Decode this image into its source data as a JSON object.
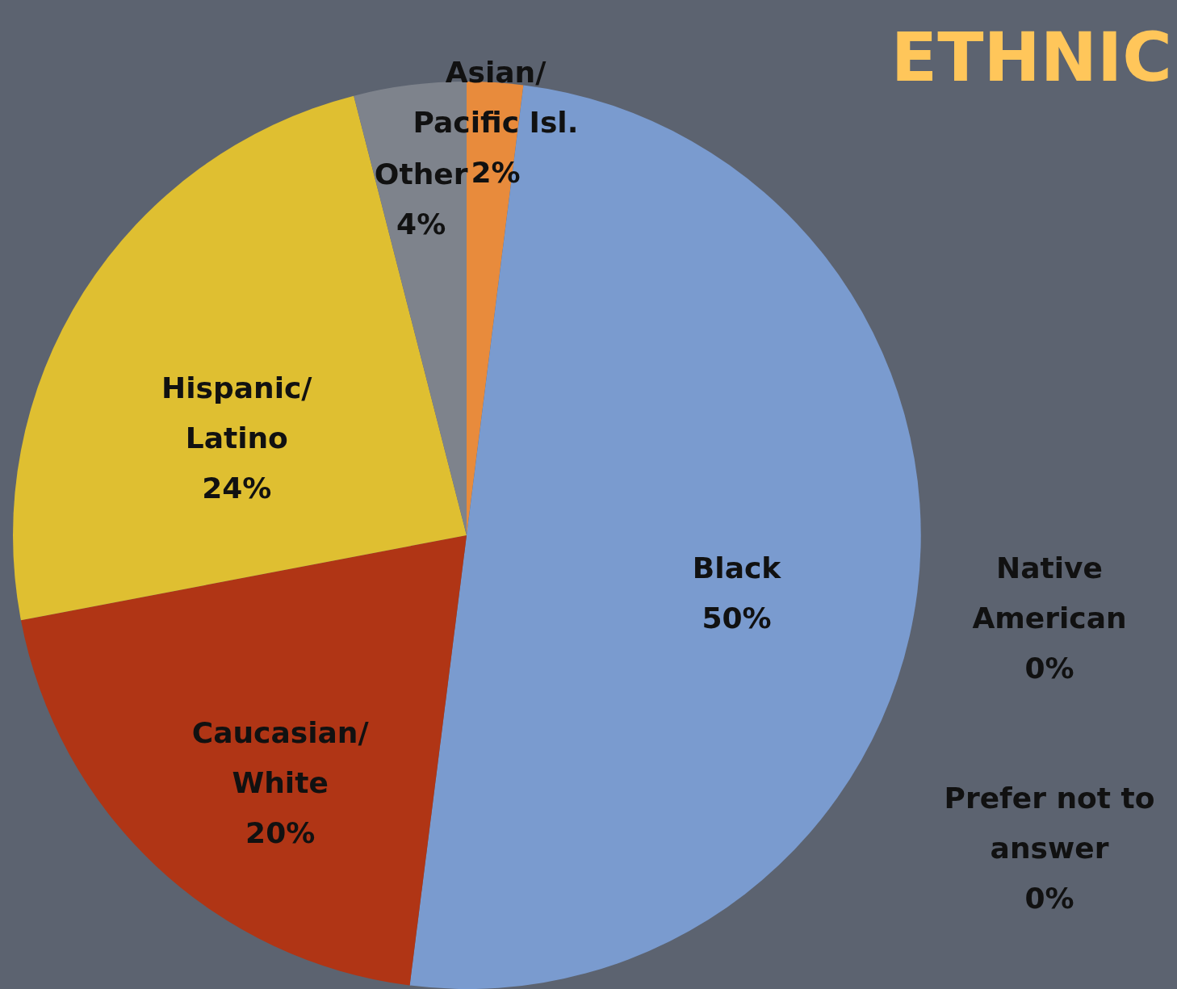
{
  "chart_data": {
    "type": "pie",
    "title": "ETHNIC",
    "categories": [
      "Asian/Pacific Isl.",
      "Black",
      "Native American",
      "Prefer not to answer",
      "Caucasian/White",
      "Hispanic/Latino",
      "Other"
    ],
    "values": [
      2,
      50,
      0,
      0,
      20,
      24,
      4
    ],
    "value_labels": [
      "2%",
      "50%",
      "0%",
      "0%",
      "20%",
      "24%",
      "4%"
    ],
    "colors": [
      "#e88b3c",
      "#7a9bcf",
      "#4472c4",
      "#a5a5a5",
      "#b03515",
      "#dfbf31",
      "#7e838c"
    ]
  }
}
